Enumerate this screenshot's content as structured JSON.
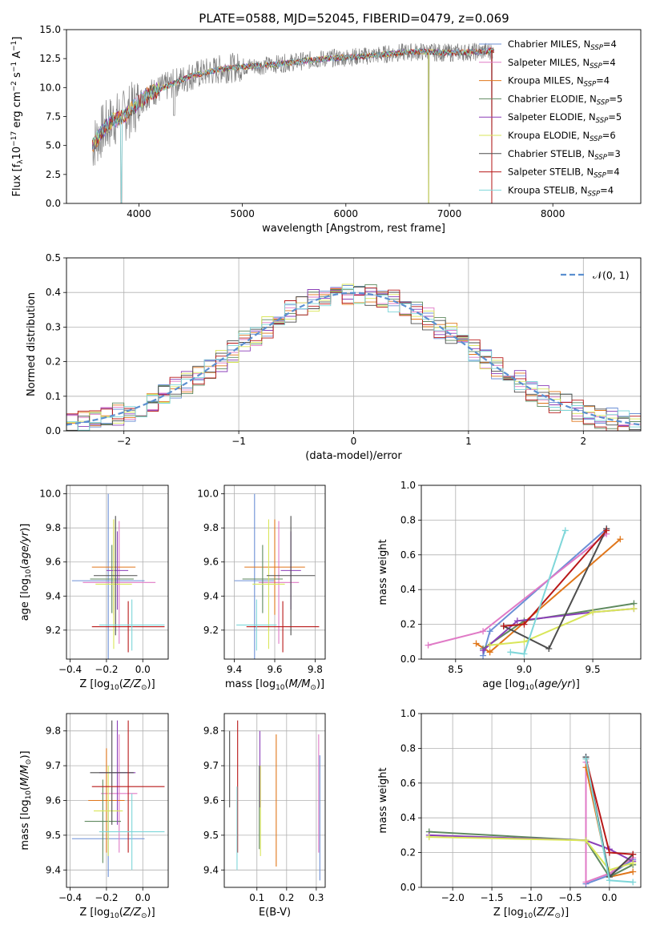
{
  "title": "PLATE=0588, MJD=52045, FIBERID=0479, z=0.069",
  "colors": {
    "chabrier_miles": "#6b8fd6",
    "salpeter_miles": "#e07ac6",
    "kroupa_miles": "#e0761a",
    "chabrier_elodie": "#5f8a5f",
    "salpeter_elodie": "#8b3fb8",
    "kroupa_elodie": "#d9e65a",
    "chabrier_stelib": "#4d4d4d",
    "salpeter_stelib": "#b81818",
    "kroupa_stelib": "#7ed6d9",
    "spectrum": "#808080",
    "normal_curve": "#5b8fd0",
    "grid": "#b0b0b0"
  },
  "chart_data": [
    {
      "type": "line",
      "panel": "spectrum",
      "xlabel": "wavelength [Angstrom, rest frame]",
      "ylabel": "Flux [f_λ 10^-17 erg cm^-2 s^-1 A^-1]",
      "xlim": [
        3300,
        8850
      ],
      "ylim": [
        0,
        15
      ],
      "xticks": [
        "4000",
        "5000",
        "6000",
        "7000",
        "8000"
      ],
      "yticks": [
        "0.0",
        "2.5",
        "5.0",
        "7.5",
        "10.0",
        "12.5",
        "15.0"
      ],
      "grid": false,
      "legend_position": "right",
      "legend": [
        {
          "name": "Chabrier MILES, N",
          "sub": "SSP",
          "value": "=4",
          "key": "chabrier_miles"
        },
        {
          "name": "Salpeter MILES, N",
          "sub": "SSP",
          "value": "=4",
          "key": "salpeter_miles"
        },
        {
          "name": "Kroupa MILES, N",
          "sub": "SSP",
          "value": "=4",
          "key": "kroupa_miles"
        },
        {
          "name": "Chabrier ELODIE, N",
          "sub": "SSP",
          "value": "=5",
          "key": "chabrier_elodie"
        },
        {
          "name": "Salpeter ELODIE, N",
          "sub": "SSP",
          "value": "=5",
          "key": "salpeter_elodie"
        },
        {
          "name": "Kroupa ELODIE, N",
          "sub": "SSP",
          "value": "=6",
          "key": "kroupa_elodie"
        },
        {
          "name": "Chabrier STELIB, N",
          "sub": "SSP",
          "value": "=3",
          "key": "chabrier_stelib"
        },
        {
          "name": "Salpeter STELIB, N",
          "sub": "SSP",
          "value": "=4",
          "key": "salpeter_stelib"
        },
        {
          "name": "Kroupa STELIB, N",
          "sub": "SSP",
          "value": "=4",
          "key": "kroupa_stelib"
        }
      ],
      "continuum": [
        [
          3550,
          5.0
        ],
        [
          3650,
          6.3
        ],
        [
          3750,
          7.2
        ],
        [
          3850,
          7.5
        ],
        [
          3950,
          8.3
        ],
        [
          4100,
          9.5
        ],
        [
          4300,
          10.2
        ],
        [
          4500,
          11.0
        ],
        [
          4800,
          11.6
        ],
        [
          5000,
          11.8
        ],
        [
          5200,
          11.9
        ],
        [
          5500,
          12.2
        ],
        [
          5800,
          12.5
        ],
        [
          6000,
          12.6
        ],
        [
          6300,
          12.8
        ],
        [
          6500,
          13.0
        ],
        [
          6700,
          13.1
        ],
        [
          7000,
          13.0
        ],
        [
          7300,
          13.1
        ],
        [
          7420,
          13.2
        ]
      ],
      "notable_dips": [
        {
          "x": 3830,
          "y": 0.0
        },
        {
          "x": 4340,
          "y": 7.6
        },
        {
          "x": 6800,
          "y": 0.0
        },
        {
          "x": 7410,
          "y": 0.0
        }
      ]
    },
    {
      "type": "histogram",
      "panel": "residuals",
      "xlabel": "(data-model)/error",
      "ylabel": "Normed distribution",
      "xlim": [
        -2.5,
        2.5
      ],
      "ylim": [
        0,
        0.5
      ],
      "xticks": [
        "−2",
        "−1",
        "0",
        "1",
        "2"
      ],
      "yticks": [
        "0.0",
        "0.1",
        "0.2",
        "0.3",
        "0.4",
        "0.5"
      ],
      "grid": true,
      "legend_position": "top-right",
      "legend": [
        {
          "name": "𝒩(0, 1)",
          "key": "normal_curve"
        }
      ],
      "bin_width": 0.1,
      "curve": "normal(0,1)",
      "series_keys": [
        "chabrier_miles",
        "salpeter_miles",
        "kroupa_miles",
        "chabrier_elodie",
        "salpeter_elodie",
        "kroupa_elodie",
        "chabrier_stelib",
        "salpeter_stelib",
        "kroupa_stelib"
      ]
    },
    {
      "type": "errorbar",
      "panel": "age_vs_Z",
      "xlabel": "Z [log10(Z/Z⊙)]",
      "ylabel": "age [log10(age/yr)]",
      "xlim": [
        -0.42,
        0.14
      ],
      "ylim": [
        9.03,
        10.05
      ],
      "xticks": [
        "−0.4",
        "−0.2",
        "0.0"
      ],
      "yticks": [
        "9.2",
        "9.4",
        "9.6",
        "9.8",
        "10.0"
      ],
      "grid": true,
      "points": [
        {
          "key": "chabrier_miles",
          "x": -0.19,
          "xerr": 0.2,
          "y": 9.49,
          "yerr": 0.51
        },
        {
          "key": "salpeter_miles",
          "x": -0.13,
          "xerr": 0.2,
          "y": 9.48,
          "yerr": 0.36
        },
        {
          "key": "kroupa_miles",
          "x": -0.16,
          "xerr": 0.12,
          "y": 9.57,
          "yerr": 0.28
        },
        {
          "key": "chabrier_elodie",
          "x": -0.17,
          "xerr": 0.12,
          "y": 9.5,
          "yerr": 0.2
        },
        {
          "key": "salpeter_elodie",
          "x": -0.14,
          "xerr": 0.06,
          "y": 9.55,
          "yerr": 0.23
        },
        {
          "key": "kroupa_elodie",
          "x": -0.16,
          "xerr": 0.1,
          "y": 9.47,
          "yerr": 0.38
        },
        {
          "key": "chabrier_stelib",
          "x": -0.15,
          "xerr": 0.12,
          "y": 9.52,
          "yerr": 0.35
        },
        {
          "key": "salpeter_stelib",
          "x": -0.08,
          "xerr": 0.2,
          "y": 9.22,
          "yerr": 0.15
        },
        {
          "key": "kroupa_stelib",
          "x": -0.06,
          "xerr": 0.18,
          "y": 9.23,
          "yerr": 0.15
        }
      ]
    },
    {
      "type": "errorbar",
      "panel": "age_vs_mass",
      "xlabel": "mass [log10(M/M⊙)]",
      "ylabel": "",
      "xlim": [
        9.35,
        9.85
      ],
      "ylim": [
        9.03,
        10.05
      ],
      "xticks": [
        "9.4",
        "9.6",
        "9.8"
      ],
      "yticks": [
        "9.2",
        "9.4",
        "9.6",
        "9.8",
        "10.0"
      ],
      "grid": true,
      "points": [
        {
          "key": "chabrier_miles",
          "x": 9.5,
          "xerr": 0.1,
          "y": 9.49,
          "yerr": 0.51
        },
        {
          "key": "salpeter_miles",
          "x": 9.62,
          "xerr": 0.1,
          "y": 9.48,
          "yerr": 0.36
        },
        {
          "key": "kroupa_miles",
          "x": 9.6,
          "xerr": 0.15,
          "y": 9.57,
          "yerr": 0.28
        },
        {
          "key": "chabrier_elodie",
          "x": 9.54,
          "xerr": 0.1,
          "y": 9.5,
          "yerr": 0.2
        },
        {
          "key": "salpeter_elodie",
          "x": 9.68,
          "xerr": 0.05,
          "y": 9.55,
          "yerr": 0.23
        },
        {
          "key": "kroupa_elodie",
          "x": 9.57,
          "xerr": 0.08,
          "y": 9.47,
          "yerr": 0.38
        },
        {
          "key": "chabrier_stelib",
          "x": 9.68,
          "xerr": 0.12,
          "y": 9.52,
          "yerr": 0.35
        },
        {
          "key": "salpeter_stelib",
          "x": 9.64,
          "xerr": 0.18,
          "y": 9.22,
          "yerr": 0.15
        },
        {
          "key": "kroupa_stelib",
          "x": 9.51,
          "xerr": 0.1,
          "y": 9.23,
          "yerr": 0.15
        }
      ]
    },
    {
      "type": "line",
      "panel": "weight_vs_age",
      "xlabel": "age [log10(age/yr)]",
      "ylabel": "mass weight",
      "xlim": [
        8.25,
        9.85
      ],
      "ylim": [
        0,
        1
      ],
      "xticks": [
        "8.5",
        "9.0",
        "9.5"
      ],
      "yticks": [
        "0.0",
        "0.2",
        "0.4",
        "0.6",
        "0.8",
        "1.0"
      ],
      "grid": true,
      "series": [
        {
          "key": "chabrier_miles",
          "x": [
            8.7,
            8.75,
            9.6
          ],
          "y": [
            0.02,
            0.16,
            0.75
          ]
        },
        {
          "key": "salpeter_miles",
          "x": [
            8.3,
            8.7,
            9.6
          ],
          "y": [
            0.08,
            0.16,
            0.72
          ]
        },
        {
          "key": "kroupa_miles",
          "x": [
            8.65,
            8.75,
            9.7
          ],
          "y": [
            0.09,
            0.04,
            0.69
          ]
        },
        {
          "key": "chabrier_elodie",
          "x": [
            8.7,
            9.0,
            9.8
          ],
          "y": [
            0.06,
            0.22,
            0.32
          ]
        },
        {
          "key": "salpeter_elodie",
          "x": [
            8.7,
            8.95,
            9.5,
            9.8
          ],
          "y": [
            0.05,
            0.22,
            0.27,
            0.29
          ]
        },
        {
          "key": "kroupa_elodie",
          "x": [
            8.75,
            9.0,
            9.5,
            9.8
          ],
          "y": [
            0.08,
            0.1,
            0.27,
            0.29
          ]
        },
        {
          "key": "chabrier_stelib",
          "x": [
            8.85,
            9.18,
            9.6
          ],
          "y": [
            0.19,
            0.06,
            0.75
          ]
        },
        {
          "key": "salpeter_stelib",
          "x": [
            8.85,
            9.0,
            9.6
          ],
          "y": [
            0.19,
            0.2,
            0.74
          ]
        },
        {
          "key": "kroupa_stelib",
          "x": [
            8.9,
            9.0,
            9.3
          ],
          "y": [
            0.04,
            0.03,
            0.74
          ]
        }
      ]
    },
    {
      "type": "errorbar",
      "panel": "mass_vs_Z",
      "xlabel": "Z [log10(Z/Z⊙)]",
      "ylabel": "mass [log10(M/M⊙)]",
      "xlim": [
        -0.42,
        0.14
      ],
      "ylim": [
        9.35,
        9.85
      ],
      "xticks": [
        "−0.4",
        "−0.2",
        "0.0"
      ],
      "yticks": [
        "9.4",
        "9.5",
        "9.6",
        "9.7",
        "9.8"
      ],
      "grid": true,
      "points": [
        {
          "key": "chabrier_miles",
          "x": -0.19,
          "xerr": 0.2,
          "y": 9.49,
          "yerr": 0.11
        },
        {
          "key": "salpeter_miles",
          "x": -0.13,
          "xerr": 0.1,
          "y": 9.62,
          "yerr": 0.17
        },
        {
          "key": "kroupa_miles",
          "x": -0.2,
          "xerr": 0.1,
          "y": 9.6,
          "yerr": 0.15
        },
        {
          "key": "chabrier_elodie",
          "x": -0.22,
          "xerr": 0.1,
          "y": 9.54,
          "yerr": 0.12
        },
        {
          "key": "salpeter_elodie",
          "x": -0.14,
          "xerr": 0.1,
          "y": 9.68,
          "yerr": 0.15
        },
        {
          "key": "kroupa_elodie",
          "x": -0.19,
          "xerr": 0.08,
          "y": 9.57,
          "yerr": 0.13
        },
        {
          "key": "chabrier_stelib",
          "x": -0.17,
          "xerr": 0.12,
          "y": 9.68,
          "yerr": 0.15
        },
        {
          "key": "salpeter_stelib",
          "x": -0.08,
          "xerr": 0.2,
          "y": 9.64,
          "yerr": 0.19
        },
        {
          "key": "kroupa_stelib",
          "x": -0.06,
          "xerr": 0.18,
          "y": 9.51,
          "yerr": 0.11
        }
      ]
    },
    {
      "type": "errorbar",
      "panel": "mass_vs_ebv",
      "xlabel": "E(B-V)",
      "ylabel": "",
      "xlim": [
        -0.01,
        0.33
      ],
      "ylim": [
        9.35,
        9.85
      ],
      "xticks": [
        "0.1",
        "0.2",
        "0.3"
      ],
      "yticks": [
        "9.4",
        "9.5",
        "9.6",
        "9.7",
        "9.8"
      ],
      "grid": true,
      "points": [
        {
          "key": "chabrier_miles",
          "x": 0.312,
          "y": 9.55,
          "yerr": 0.18
        },
        {
          "key": "salpeter_miles",
          "x": 0.308,
          "y": 9.62,
          "yerr": 0.17
        },
        {
          "key": "kroupa_miles",
          "x": 0.165,
          "y": 9.6,
          "yerr": 0.19
        },
        {
          "key": "chabrier_elodie",
          "x": 0.108,
          "y": 9.58,
          "yerr": 0.12
        },
        {
          "key": "salpeter_elodie",
          "x": 0.11,
          "y": 9.69,
          "yerr": 0.11
        },
        {
          "key": "kroupa_elodie",
          "x": 0.112,
          "y": 9.57,
          "yerr": 0.13
        },
        {
          "key": "chabrier_stelib",
          "x": 0.008,
          "y": 9.69,
          "yerr": 0.11
        },
        {
          "key": "salpeter_stelib",
          "x": 0.035,
          "y": 9.64,
          "yerr": 0.19
        },
        {
          "key": "kroupa_stelib",
          "x": 0.033,
          "y": 9.52,
          "yerr": 0.12
        }
      ]
    },
    {
      "type": "line",
      "panel": "weight_vs_Z",
      "xlabel": "Z [log10(Z/Z⊙)]",
      "ylabel": "mass weight",
      "xlim": [
        -2.4,
        0.4
      ],
      "ylim": [
        0,
        1
      ],
      "xticks": [
        "−2.0",
        "−1.5",
        "−1.0",
        "−0.5",
        "0.0"
      ],
      "yticks": [
        "0.0",
        "0.2",
        "0.4",
        "0.6",
        "0.8",
        "1.0"
      ],
      "grid": true,
      "series": [
        {
          "key": "chabrier_miles",
          "x": [
            -0.3,
            -0.3,
            0.0,
            0.3
          ],
          "y": [
            0.75,
            0.02,
            0.07,
            0.16
          ]
        },
        {
          "key": "salpeter_miles",
          "x": [
            -0.3,
            -0.3,
            0.0,
            0.3
          ],
          "y": [
            0.72,
            0.03,
            0.08,
            0.17
          ]
        },
        {
          "key": "kroupa_miles",
          "x": [
            -0.3,
            0.0,
            0.3
          ],
          "y": [
            0.69,
            0.06,
            0.09
          ]
        },
        {
          "key": "chabrier_elodie",
          "x": [
            -2.3,
            -0.3,
            0.0,
            0.3
          ],
          "y": [
            0.32,
            0.27,
            0.06,
            0.13
          ]
        },
        {
          "key": "salpeter_elodie",
          "x": [
            -2.3,
            -0.3,
            0.0,
            0.3
          ],
          "y": [
            0.3,
            0.27,
            0.22,
            0.15
          ]
        },
        {
          "key": "kroupa_elodie",
          "x": [
            -2.3,
            -0.3,
            0.0,
            0.3
          ],
          "y": [
            0.29,
            0.27,
            0.1,
            0.14
          ]
        },
        {
          "key": "chabrier_stelib",
          "x": [
            -0.3,
            0.0,
            0.3
          ],
          "y": [
            0.75,
            0.06,
            0.19
          ]
        },
        {
          "key": "salpeter_stelib",
          "x": [
            -0.3,
            0.0,
            0.3
          ],
          "y": [
            0.74,
            0.2,
            0.19
          ]
        },
        {
          "key": "kroupa_stelib",
          "x": [
            -0.3,
            0.0,
            0.3
          ],
          "y": [
            0.74,
            0.04,
            0.03
          ]
        }
      ]
    }
  ]
}
